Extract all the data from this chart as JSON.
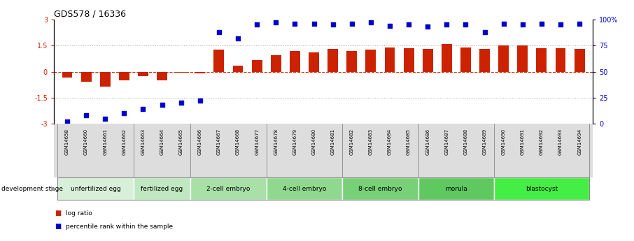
{
  "title": "GDS578 / 16336",
  "samples": [
    "GSM14658",
    "GSM14660",
    "GSM14661",
    "GSM14662",
    "GSM14663",
    "GSM14664",
    "GSM14665",
    "GSM14666",
    "GSM14667",
    "GSM14668",
    "GSM14677",
    "GSM14678",
    "GSM14679",
    "GSM14680",
    "GSM14681",
    "GSM14682",
    "GSM14683",
    "GSM14684",
    "GSM14685",
    "GSM14686",
    "GSM14687",
    "GSM14688",
    "GSM14689",
    "GSM14690",
    "GSM14691",
    "GSM14692",
    "GSM14693",
    "GSM14694"
  ],
  "log_ratio": [
    -0.35,
    -0.6,
    -0.85,
    -0.5,
    -0.25,
    -0.5,
    -0.08,
    -0.12,
    1.25,
    0.35,
    0.65,
    0.95,
    1.2,
    1.1,
    1.3,
    1.2,
    1.25,
    1.4,
    1.35,
    1.3,
    1.6,
    1.4,
    1.3,
    1.5,
    1.5,
    1.35,
    1.35,
    1.3
  ],
  "percentile_rank": [
    2,
    8,
    5,
    10,
    14,
    18,
    20,
    22,
    88,
    82,
    95,
    97,
    96,
    96,
    95,
    96,
    97,
    94,
    95,
    93,
    95,
    95,
    88,
    96,
    95,
    96,
    95,
    96
  ],
  "stages": [
    {
      "label": "unfertilized egg",
      "start": 0,
      "end": 4
    },
    {
      "label": "fertilized egg",
      "start": 4,
      "end": 7
    },
    {
      "label": "2-cell embryo",
      "start": 7,
      "end": 11
    },
    {
      "label": "4-cell embryo",
      "start": 11,
      "end": 15
    },
    {
      "label": "8-cell embryo",
      "start": 15,
      "end": 19
    },
    {
      "label": "morula",
      "start": 19,
      "end": 23
    },
    {
      "label": "blastocyst",
      "start": 23,
      "end": 28
    }
  ],
  "stage_colors": [
    "#d8f0d8",
    "#c0e8c0",
    "#a8e0a8",
    "#90d890",
    "#78d078",
    "#60c860",
    "#44ee44"
  ],
  "bar_color": "#cc2200",
  "dot_color": "#0000cc",
  "ylim_left": [
    -3,
    3
  ],
  "yticks_left": [
    -3,
    -1.5,
    0,
    1.5,
    3
  ],
  "ytick_labels_left": [
    "-3",
    "-1.5",
    "0",
    "1.5",
    "3"
  ],
  "yticks_right": [
    0,
    25,
    50,
    75,
    100
  ],
  "ytick_labels_right": [
    "0",
    "25",
    "50",
    "75",
    "100%"
  ],
  "title_fontsize": 9,
  "bar_color_left": "#cc2200",
  "dot_color_right": "#0000cc",
  "bg_color": "#ffffff",
  "legend_items": [
    "log ratio",
    "percentile rank within the sample"
  ],
  "legend_colors": [
    "#cc2200",
    "#0000cc"
  ],
  "dev_stage_label": "development stage"
}
